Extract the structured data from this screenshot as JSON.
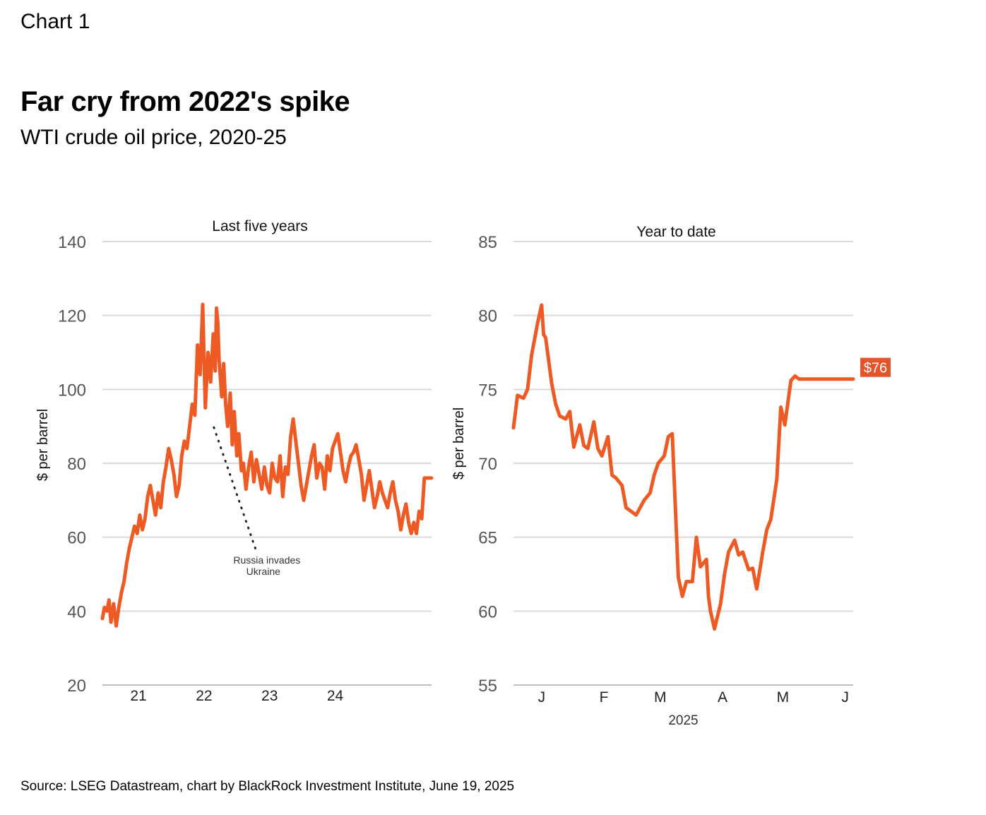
{
  "header": {
    "chart_label": "Chart 1",
    "title": "Far cry from 2022's spike",
    "subtitle": "WTI crude oil price, 2020-25"
  },
  "footer": {
    "source": "Source: LSEG Datastream, chart by BlackRock Investment Institute, June 19, 2025"
  },
  "colors": {
    "line": "#ee5a24",
    "grid": "#d9d9d9",
    "callout_bg": "#e4532a",
    "callout_text": "#ffffff"
  },
  "chart_data": [
    {
      "type": "line",
      "panel_title": "Last five years",
      "ylabel": "$ per barrel",
      "ylim": [
        20,
        140
      ],
      "yticks": [
        20,
        40,
        60,
        80,
        100,
        120,
        140
      ],
      "xlim": [
        2020.45,
        2025.47
      ],
      "xticks": [
        {
          "label": "21",
          "x": 2021
        },
        {
          "label": "22",
          "x": 2022
        },
        {
          "label": "23",
          "x": 2023
        },
        {
          "label": "24",
          "x": 2024
        }
      ],
      "grid": true,
      "annotation": {
        "text": [
          "Russia invades",
          "Ukraine"
        ],
        "x": 2022.15,
        "y": 92
      },
      "series": [
        {
          "x": [
            2020.45,
            2020.48,
            2020.52,
            2020.55,
            2020.58,
            2020.62,
            2020.66,
            2020.7,
            2020.74,
            2020.78,
            2020.82,
            2020.86,
            2020.9,
            2020.94,
            2020.98,
            2021.02,
            2021.06,
            2021.1,
            2021.14,
            2021.18,
            2021.22,
            2021.26,
            2021.3,
            2021.34,
            2021.38,
            2021.42,
            2021.46,
            2021.5,
            2021.54,
            2021.58,
            2021.62,
            2021.66,
            2021.7,
            2021.74,
            2021.78,
            2021.82,
            2021.86,
            2021.9,
            2021.94,
            2021.98,
            2022.02,
            2022.06,
            2022.1,
            2022.14,
            2022.17,
            2022.19,
            2022.21,
            2022.23,
            2022.25,
            2022.27,
            2022.3,
            2022.33,
            2022.36,
            2022.4,
            2022.43,
            2022.46,
            2022.5,
            2022.53,
            2022.57,
            2022.6,
            2022.64,
            2022.68,
            2022.72,
            2022.76,
            2022.8,
            2022.84,
            2022.88,
            2022.92,
            2022.96,
            2023.0,
            2023.04,
            2023.08,
            2023.12,
            2023.16,
            2023.2,
            2023.24,
            2023.28,
            2023.32,
            2023.36,
            2023.4,
            2023.44,
            2023.48,
            2023.52,
            2023.56,
            2023.6,
            2023.64,
            2023.68,
            2023.72,
            2023.76,
            2023.8,
            2023.84,
            2023.88,
            2023.92,
            2023.96,
            2024.0,
            2024.04,
            2024.08,
            2024.12,
            2024.16,
            2024.2,
            2024.24,
            2024.28,
            2024.32,
            2024.36,
            2024.4,
            2024.44,
            2024.48,
            2024.52,
            2024.56,
            2024.6,
            2024.64,
            2024.68,
            2024.72,
            2024.76,
            2024.8,
            2024.84,
            2024.88,
            2024.92,
            2024.96,
            2025.0,
            2025.04,
            2025.08,
            2025.12,
            2025.16,
            2025.2,
            2025.24,
            2025.28,
            2025.32,
            2025.36,
            2025.4,
            2025.44,
            2025.47
          ],
          "y": [
            38,
            41,
            40,
            43,
            37,
            42,
            36,
            41,
            45,
            48,
            53,
            57,
            60,
            63,
            61,
            66,
            62,
            65,
            71,
            74,
            70,
            66,
            72,
            68,
            75,
            79,
            84,
            81,
            77,
            71,
            74,
            82,
            86,
            84,
            90,
            96,
            93,
            112,
            104,
            123,
            95,
            110,
            102,
            115,
            105,
            122,
            118,
            108,
            103,
            98,
            107,
            96,
            90,
            99,
            85,
            94,
            82,
            88,
            78,
            80,
            73,
            79,
            83,
            75,
            81,
            77,
            73,
            79,
            74,
            72,
            80,
            76,
            75,
            82,
            71,
            79,
            77,
            87,
            92,
            86,
            80,
            74,
            70,
            74,
            78,
            82,
            85,
            76,
            80,
            79,
            73,
            82,
            78,
            84,
            86,
            88,
            83,
            78,
            75,
            79,
            82,
            83,
            85,
            81,
            77,
            70,
            74,
            78,
            73,
            68,
            71,
            75,
            72,
            70,
            68,
            72,
            75,
            70,
            67,
            62,
            66,
            69,
            64,
            61,
            64,
            61,
            67,
            65,
            76,
            76,
            76,
            76
          ]
        }
      ]
    },
    {
      "type": "line",
      "panel_title": "Year to date",
      "ylabel": "$ per barrel",
      "ylim": [
        55,
        85
      ],
      "yticks": [
        55,
        60,
        65,
        70,
        75,
        80,
        85
      ],
      "xlim": [
        "2025-01-01",
        "2025-06-19"
      ],
      "xticks": [
        {
          "label": "J",
          "x": "2025-01-15"
        },
        {
          "label": "F",
          "x": "2025-02-15"
        },
        {
          "label": "M",
          "x": "2025-03-15"
        },
        {
          "label": "A",
          "x": "2025-04-15"
        },
        {
          "label": "M",
          "x": "2025-05-15"
        },
        {
          "label": "J",
          "x": "2025-06-15"
        }
      ],
      "xaxis_label": "2025",
      "grid": true,
      "end_label": "$76",
      "series": [
        {
          "x": [
            "2025-01-01",
            "2025-01-03",
            "2025-01-06",
            "2025-01-08",
            "2025-01-10",
            "2025-01-13",
            "2025-01-15",
            "2025-01-16",
            "2025-01-17",
            "2025-01-20",
            "2025-01-22",
            "2025-01-24",
            "2025-01-27",
            "2025-01-29",
            "2025-01-31",
            "2025-02-03",
            "2025-02-05",
            "2025-02-07",
            "2025-02-10",
            "2025-02-12",
            "2025-02-14",
            "2025-02-17",
            "2025-02-19",
            "2025-02-21",
            "2025-02-24",
            "2025-02-26",
            "2025-02-28",
            "2025-03-03",
            "2025-03-05",
            "2025-03-07",
            "2025-03-10",
            "2025-03-12",
            "2025-03-14",
            "2025-03-17",
            "2025-03-19",
            "2025-03-21",
            "2025-03-24",
            "2025-03-26",
            "2025-03-28",
            "2025-03-31",
            "2025-04-02",
            "2025-04-03",
            "2025-04-04",
            "2025-04-07",
            "2025-04-08",
            "2025-04-09",
            "2025-04-11",
            "2025-04-14",
            "2025-04-16",
            "2025-04-18",
            "2025-04-21",
            "2025-04-23",
            "2025-04-25",
            "2025-04-28",
            "2025-04-30",
            "2025-05-02",
            "2025-05-05",
            "2025-05-07",
            "2025-05-09",
            "2025-05-12",
            "2025-05-14",
            "2025-05-16",
            "2025-05-19",
            "2025-05-21",
            "2025-05-23",
            "2025-05-26",
            "2025-05-28",
            "2025-05-30",
            "2025-06-02",
            "2025-06-04",
            "2025-06-06",
            "2025-06-09",
            "2025-06-11",
            "2025-06-13",
            "2025-06-16",
            "2025-06-18",
            "2025-06-19"
          ],
          "y": [
            72.4,
            74.6,
            74.4,
            75.0,
            77.3,
            79.5,
            80.7,
            78.7,
            78.5,
            75.4,
            74.0,
            73.2,
            73.0,
            73.5,
            71.1,
            72.6,
            71.2,
            71.0,
            72.8,
            71.0,
            70.5,
            71.8,
            69.2,
            69.0,
            68.5,
            67.0,
            66.8,
            66.5,
            67.0,
            67.5,
            68.0,
            69.2,
            70.0,
            70.5,
            71.8,
            72.0,
            62.3,
            61.0,
            62.0,
            62.0,
            65.0,
            64.0,
            63.0,
            63.5,
            61.0,
            60.0,
            58.8,
            60.5,
            62.5,
            64.0,
            64.8,
            63.8,
            64.0,
            62.8,
            62.9,
            61.5,
            64.0,
            65.5,
            66.2,
            68.9,
            73.8,
            72.6,
            75.6,
            75.9,
            75.7,
            75.7,
            75.7,
            75.7,
            75.7,
            75.7,
            75.7,
            75.7,
            75.7,
            75.7,
            75.7,
            75.7,
            75.7
          ]
        }
      ]
    }
  ]
}
